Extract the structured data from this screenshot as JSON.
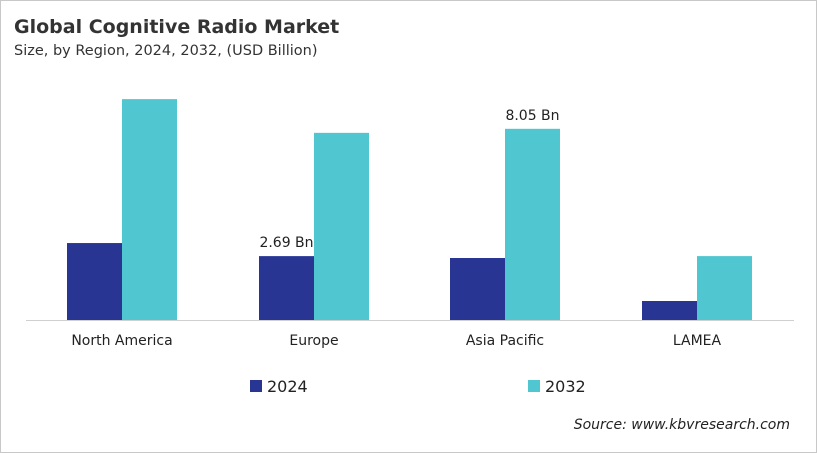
{
  "chart_data": {
    "type": "bar",
    "title": "Global Cognitive Radio Market",
    "subtitle": "Size, by Region, 2024, 2032, (USD Billion)",
    "categories": [
      "North America",
      "Europe",
      "Asia Pacific",
      "LAMEA"
    ],
    "series": [
      {
        "name": "2024",
        "color": "#283593",
        "values": [
          3.24,
          2.69,
          2.61,
          0.8
        ]
      },
      {
        "name": "2032",
        "color": "#4fc6d0",
        "values": [
          9.3,
          7.88,
          8.05,
          2.69
        ]
      }
    ],
    "data_labels": [
      {
        "series": 0,
        "index": 1,
        "text": "2.69 Bn"
      },
      {
        "series": 1,
        "index": 2,
        "text": "8.05 Bn"
      }
    ],
    "xlabel": "",
    "ylabel": "",
    "ylim": [
      0,
      10
    ],
    "grid": false,
    "legend": "bottom-center"
  },
  "source": "Source: www.kbvresearch.com"
}
